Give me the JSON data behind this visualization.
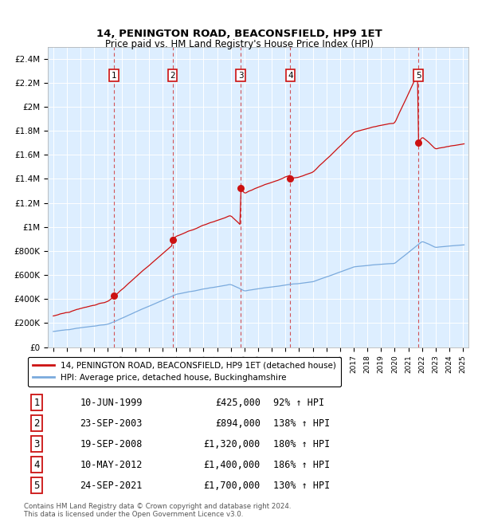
{
  "title": "14, PENINGTON ROAD, BEACONSFIELD, HP9 1ET",
  "subtitle": "Price paid vs. HM Land Registry's House Price Index (HPI)",
  "footer": "Contains HM Land Registry data © Crown copyright and database right 2024.\nThis data is licensed under the Open Government Licence v3.0.",
  "legend_line1": "14, PENINGTON ROAD, BEACONSFIELD, HP9 1ET (detached house)",
  "legend_line2": "HPI: Average price, detached house, Buckinghamshire",
  "transactions": [
    {
      "num": 1,
      "date": "10-JUN-1999",
      "year": 1999.44,
      "price": 425000,
      "pct": "92% ↑ HPI"
    },
    {
      "num": 2,
      "date": "23-SEP-2003",
      "year": 2003.73,
      "price": 894000,
      "pct": "138% ↑ HPI"
    },
    {
      "num": 3,
      "date": "19-SEP-2008",
      "year": 2008.72,
      "price": 1320000,
      "pct": "180% ↑ HPI"
    },
    {
      "num": 4,
      "date": "10-MAY-2012",
      "year": 2012.36,
      "price": 1400000,
      "pct": "186% ↑ HPI"
    },
    {
      "num": 5,
      "date": "24-SEP-2021",
      "year": 2021.73,
      "price": 1700000,
      "pct": "130% ↑ HPI"
    }
  ],
  "hpi_color": "#7aaadd",
  "price_color": "#cc1111",
  "background_color": "#ddeeff",
  "ylim": [
    0,
    2500000
  ],
  "xlim_left": 1994.6,
  "xlim_right": 2025.4,
  "yticks": [
    0,
    200000,
    400000,
    600000,
    800000,
    1000000,
    1200000,
    1400000,
    1600000,
    1800000,
    2000000,
    2200000,
    2400000
  ],
  "ytick_labels": [
    "£0",
    "£200K",
    "£400K",
    "£600K",
    "£800K",
    "£1M",
    "£1.2M",
    "£1.4M",
    "£1.6M",
    "£1.8M",
    "£2M",
    "£2.2M",
    "£2.4M"
  ]
}
